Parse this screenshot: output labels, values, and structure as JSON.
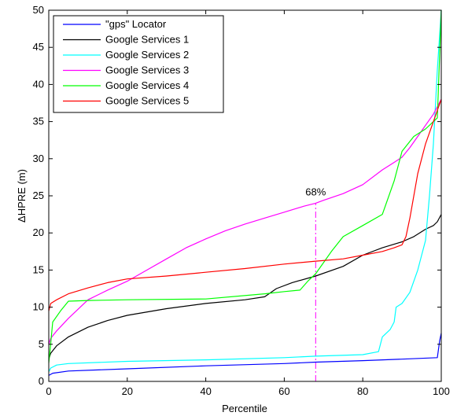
{
  "chart_data": {
    "type": "line",
    "title": "",
    "xlabel": "Percentile",
    "ylabel": "ΔHPRE (m)",
    "xlim": [
      0,
      100
    ],
    "ylim": [
      0,
      50
    ],
    "xticks": [
      "0",
      "20",
      "40",
      "60",
      "80",
      "100"
    ],
    "yticks": [
      "0",
      "5",
      "10",
      "15",
      "20",
      "25",
      "30",
      "35",
      "40",
      "45",
      "50"
    ],
    "grid": false,
    "legend_position": "top-left",
    "annotation": {
      "label": "68%",
      "x": 68,
      "y_from": 0,
      "y_to": 24,
      "color": "#ff00ff"
    },
    "series": [
      {
        "name": "\"gps\" Locator",
        "color": "#0000ff",
        "x": [
          0,
          1,
          5,
          20,
          40,
          60,
          68,
          80,
          90,
          99,
          99.6,
          100
        ],
        "y": [
          0.8,
          1.1,
          1.4,
          1.7,
          2.1,
          2.4,
          2.6,
          2.8,
          3.0,
          3.2,
          5.5,
          6.5
        ]
      },
      {
        "name": "Google Services 1",
        "color": "#000000",
        "x": [
          0,
          0.5,
          2,
          5,
          10,
          15,
          20,
          30,
          40,
          50,
          55,
          58,
          62,
          68,
          75,
          80,
          85,
          90,
          93,
          96,
          98,
          99,
          100
        ],
        "y": [
          3.0,
          3.8,
          4.8,
          6.0,
          7.3,
          8.2,
          8.9,
          9.8,
          10.5,
          11.0,
          11.4,
          12.5,
          13.3,
          14.2,
          15.5,
          17.0,
          18.0,
          18.8,
          19.5,
          20.5,
          21.0,
          21.5,
          22.5
        ]
      },
      {
        "name": "Google Services 2",
        "color": "#00ffff",
        "x": [
          0,
          0.5,
          2,
          5,
          20,
          40,
          60,
          68,
          80,
          84,
          85,
          87,
          88,
          88.5,
          90,
          92,
          94,
          96,
          97,
          98,
          99,
          100
        ],
        "y": [
          1.3,
          1.8,
          2.2,
          2.4,
          2.7,
          2.9,
          3.2,
          3.4,
          3.6,
          4.0,
          6.0,
          7.0,
          8.0,
          10.0,
          10.5,
          12.0,
          15.0,
          19.0,
          25.0,
          32.0,
          42.0,
          50.0
        ]
      },
      {
        "name": "Google Services 3",
        "color": "#ff00ff",
        "x": [
          0,
          0.5,
          2,
          5,
          10,
          15,
          20,
          25,
          30,
          35,
          40,
          45,
          50,
          55,
          60,
          65,
          68,
          70,
          75,
          80,
          85,
          88,
          90,
          92,
          94,
          96,
          98,
          100
        ],
        "y": [
          5.0,
          5.8,
          6.8,
          8.5,
          11.0,
          12.3,
          13.5,
          15.0,
          16.5,
          18.0,
          19.2,
          20.3,
          21.2,
          22.0,
          22.8,
          23.6,
          24.0,
          24.4,
          25.3,
          26.5,
          28.5,
          29.5,
          30.2,
          31.5,
          33.0,
          34.5,
          36.0,
          38.0
        ]
      },
      {
        "name": "Google Services 4",
        "color": "#00ff00",
        "x": [
          0,
          0.3,
          1,
          3,
          5,
          10,
          20,
          40,
          55,
          60,
          64,
          66,
          68,
          70,
          72,
          75,
          80,
          85,
          88,
          90,
          93,
          96,
          99,
          100
        ],
        "y": [
          2.5,
          4.0,
          8.0,
          9.5,
          10.8,
          10.9,
          11.0,
          11.1,
          11.8,
          12.1,
          12.3,
          13.5,
          14.5,
          16.0,
          17.5,
          19.5,
          21.0,
          22.5,
          27.0,
          31.0,
          33.0,
          34.0,
          35.5,
          50.0
        ]
      },
      {
        "name": "Google Services 5",
        "color": "#ff0000",
        "x": [
          0,
          0.5,
          2,
          5,
          10,
          15,
          20,
          30,
          40,
          50,
          60,
          68,
          75,
          80,
          85,
          88,
          90,
          91,
          92,
          94,
          96,
          98,
          100
        ],
        "y": [
          9.5,
          10.5,
          11.0,
          11.8,
          12.6,
          13.3,
          13.8,
          14.2,
          14.7,
          15.2,
          15.8,
          16.2,
          16.5,
          17.0,
          17.5,
          18.0,
          18.4,
          19.5,
          22.0,
          28.0,
          32.0,
          35.0,
          38.0
        ]
      }
    ]
  }
}
